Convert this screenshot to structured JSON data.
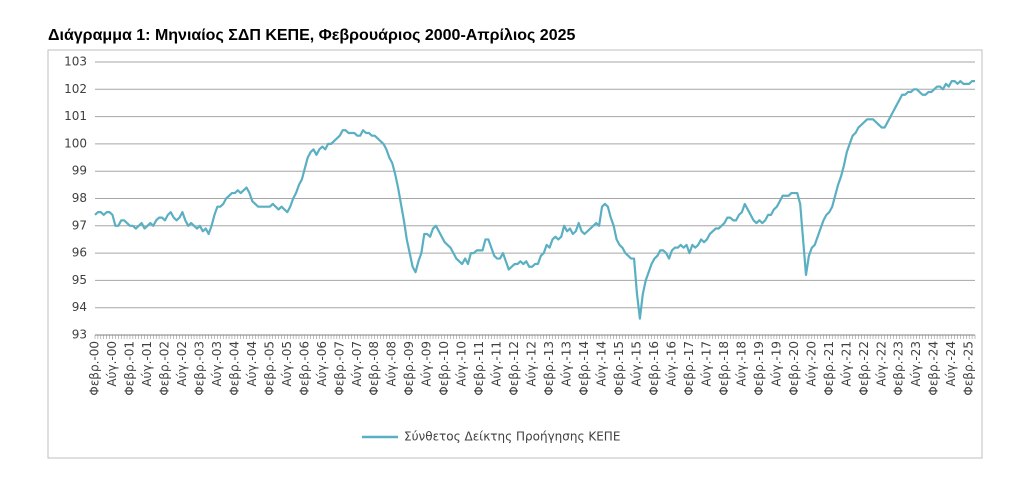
{
  "chart_data": {
    "type": "line",
    "title": "Διάγραμμα 1: Μηνιαίος ΣΔΠ ΚΕΠΕ, Φεβρουάριος 2000-Απρίλιος 2025",
    "categories": [
      "Φεβρ.-00",
      null,
      null,
      null,
      null,
      null,
      "Αύγ.-00",
      null,
      null,
      null,
      null,
      null,
      "Φεβρ.-01",
      null,
      null,
      null,
      null,
      null,
      "Αύγ.-01",
      null,
      null,
      null,
      null,
      null,
      "Φεβρ.-02",
      null,
      null,
      null,
      null,
      null,
      "Αύγ.-02",
      null,
      null,
      null,
      null,
      null,
      "Φεβρ.-03",
      null,
      null,
      null,
      null,
      null,
      "Αύγ.-03",
      null,
      null,
      null,
      null,
      null,
      "Φεβρ.-04",
      null,
      null,
      null,
      null,
      null,
      "Αύγ.-04",
      null,
      null,
      null,
      null,
      null,
      "Φεβρ.-05",
      null,
      null,
      null,
      null,
      null,
      "Αύγ.-05",
      null,
      null,
      null,
      null,
      null,
      "Φεβρ.-06",
      null,
      null,
      null,
      null,
      null,
      "Αύγ.-06",
      null,
      null,
      null,
      null,
      null,
      "Φεβρ.-07",
      null,
      null,
      null,
      null,
      null,
      "Αύγ.-07",
      null,
      null,
      null,
      null,
      null,
      "Φεβρ.-08",
      null,
      null,
      null,
      null,
      null,
      "Αύγ.-08",
      null,
      null,
      null,
      null,
      null,
      "Φεβρ.-09",
      null,
      null,
      null,
      null,
      null,
      "Αύγ.-09",
      null,
      null,
      null,
      null,
      null,
      "Φεβρ.-10",
      null,
      null,
      null,
      null,
      null,
      "Αύγ.-10",
      null,
      null,
      null,
      null,
      null,
      "Φεβρ.-11",
      null,
      null,
      null,
      null,
      null,
      "Αύγ.-11",
      null,
      null,
      null,
      null,
      null,
      "Φεβρ.-12",
      null,
      null,
      null,
      null,
      null,
      "Αύγ.-12",
      null,
      null,
      null,
      null,
      null,
      "Φεβρ.-13",
      null,
      null,
      null,
      null,
      null,
      "Αύγ.-13",
      null,
      null,
      null,
      null,
      null,
      "Φεβρ.-14",
      null,
      null,
      null,
      null,
      null,
      "Αύγ.-14",
      null,
      null,
      null,
      null,
      null,
      "Φεβρ.-15",
      null,
      null,
      null,
      null,
      null,
      "Αύγ.-15",
      null,
      null,
      null,
      null,
      null,
      "Φεβρ.-16",
      null,
      null,
      null,
      null,
      null,
      "Αύγ.-16",
      null,
      null,
      null,
      null,
      null,
      "Φεβρ.-17",
      null,
      null,
      null,
      null,
      null,
      "Αύγ.-17",
      null,
      null,
      null,
      null,
      null,
      "Φεβρ.-18",
      null,
      null,
      null,
      null,
      null,
      "Αύγ.-18",
      null,
      null,
      null,
      null,
      null,
      "Φεβρ.-19",
      null,
      null,
      null,
      null,
      null,
      "Αύγ.-19",
      null,
      null,
      null,
      null,
      null,
      "Φεβρ.-20",
      null,
      null,
      null,
      null,
      null,
      "Αύγ.-20",
      null,
      null,
      null,
      null,
      null,
      "Φεβρ.-21",
      null,
      null,
      null,
      null,
      null,
      "Αύγ.-21",
      null,
      null,
      null,
      null,
      null,
      "Φεβρ.-22",
      null,
      null,
      null,
      null,
      null,
      "Αύγ.-22",
      null,
      null,
      null,
      null,
      null,
      "Φεβρ.-23",
      null,
      null,
      null,
      null,
      null,
      "Αύγ.-23",
      null,
      null,
      null,
      null,
      null,
      "Φεβρ.-24",
      null,
      null,
      null,
      null,
      null,
      "Αύγ.-24",
      null,
      null,
      null,
      null,
      null,
      "Φεβρ.-25",
      null,
      null
    ],
    "series": [
      {
        "name": "Σύνθετος Δείκτης Προήγησης ΚΕΠΕ",
        "color": "#5aafc2",
        "values": [
          97.4,
          97.5,
          97.5,
          97.4,
          97.5,
          97.5,
          97.4,
          97.0,
          97.0,
          97.2,
          97.2,
          97.1,
          97.0,
          97.0,
          96.9,
          97.0,
          97.1,
          96.9,
          97.0,
          97.1,
          97.0,
          97.2,
          97.3,
          97.3,
          97.2,
          97.4,
          97.5,
          97.3,
          97.2,
          97.3,
          97.5,
          97.2,
          97.0,
          97.1,
          97.0,
          96.9,
          97.0,
          96.8,
          96.9,
          96.7,
          97.0,
          97.4,
          97.7,
          97.7,
          97.8,
          98.0,
          98.1,
          98.2,
          98.2,
          98.3,
          98.2,
          98.3,
          98.4,
          98.2,
          97.9,
          97.8,
          97.7,
          97.7,
          97.7,
          97.7,
          97.7,
          97.8,
          97.7,
          97.6,
          97.7,
          97.6,
          97.5,
          97.7,
          98.0,
          98.2,
          98.5,
          98.7,
          99.1,
          99.5,
          99.7,
          99.8,
          99.6,
          99.8,
          99.9,
          99.8,
          100.0,
          100.0,
          100.1,
          100.2,
          100.3,
          100.5,
          100.5,
          100.4,
          100.4,
          100.4,
          100.3,
          100.3,
          100.5,
          100.4,
          100.4,
          100.3,
          100.3,
          100.2,
          100.1,
          100.0,
          99.8,
          99.5,
          99.3,
          98.9,
          98.4,
          97.8,
          97.2,
          96.5,
          96.0,
          95.5,
          95.3,
          95.7,
          96.0,
          96.7,
          96.7,
          96.6,
          96.9,
          97.0,
          96.8,
          96.6,
          96.4,
          96.3,
          96.2,
          96.0,
          95.8,
          95.7,
          95.6,
          95.8,
          95.6,
          96.0,
          96.0,
          96.1,
          96.1,
          96.1,
          96.5,
          96.5,
          96.2,
          95.9,
          95.8,
          95.8,
          96.0,
          95.7,
          95.4,
          95.5,
          95.6,
          95.6,
          95.7,
          95.6,
          95.7,
          95.5,
          95.5,
          95.6,
          95.6,
          95.9,
          96.0,
          96.3,
          96.2,
          96.5,
          96.6,
          96.5,
          96.6,
          97.0,
          96.8,
          96.9,
          96.7,
          96.8,
          97.1,
          96.8,
          96.7,
          96.8,
          96.9,
          97.0,
          97.1,
          97.0,
          97.7,
          97.8,
          97.7,
          97.3,
          97.0,
          96.5,
          96.3,
          96.2,
          96.0,
          95.9,
          95.8,
          95.8,
          94.5,
          93.6,
          94.5,
          95.0,
          95.3,
          95.6,
          95.8,
          95.9,
          96.1,
          96.1,
          96.0,
          95.8,
          96.1,
          96.2,
          96.2,
          96.3,
          96.2,
          96.3,
          96.0,
          96.3,
          96.2,
          96.3,
          96.5,
          96.4,
          96.5,
          96.7,
          96.8,
          96.9,
          96.9,
          97.0,
          97.1,
          97.3,
          97.3,
          97.2,
          97.2,
          97.4,
          97.5,
          97.8,
          97.6,
          97.4,
          97.2,
          97.1,
          97.2,
          97.1,
          97.2,
          97.4,
          97.4,
          97.6,
          97.7,
          97.9,
          98.1,
          98.1,
          98.1,
          98.2,
          98.2,
          98.2,
          97.8,
          96.5,
          95.2,
          95.9,
          96.2,
          96.3,
          96.6,
          96.9,
          97.2,
          97.4,
          97.5,
          97.7,
          98.1,
          98.5,
          98.8,
          99.2,
          99.7,
          100.0,
          100.3,
          100.4,
          100.6,
          100.7,
          100.8,
          100.9,
          100.9,
          100.9,
          100.8,
          100.7,
          100.6,
          100.6,
          100.8,
          101.0,
          101.2,
          101.4,
          101.6,
          101.8,
          101.8,
          101.9,
          101.9,
          102.0,
          102.0,
          101.9,
          101.8,
          101.8,
          101.9,
          101.9,
          102.0,
          102.1,
          102.1,
          102.0,
          102.2,
          102.1,
          102.3,
          102.3,
          102.2,
          102.3,
          102.2,
          102.2,
          102.2,
          102.3,
          102.3
        ]
      }
    ],
    "ylim": [
      93,
      103
    ],
    "yticks": [
      93,
      94,
      95,
      96,
      97,
      98,
      99,
      100,
      101,
      102,
      103
    ],
    "grid": true,
    "legend": "bottom"
  }
}
